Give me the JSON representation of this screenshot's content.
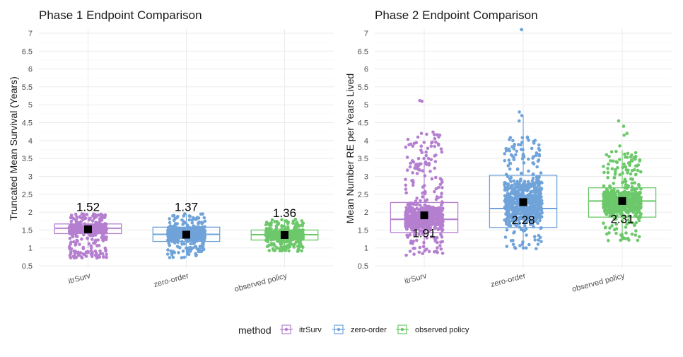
{
  "legend": {
    "title": "method",
    "items": [
      {
        "label": "itrSurv",
        "color": "#B57FD0"
      },
      {
        "label": "zero-order",
        "color": "#6FA3D9"
      },
      {
        "label": "observed policy",
        "color": "#6CC86A"
      }
    ]
  },
  "chart_data": [
    {
      "type": "box",
      "title": "Phase 1 Endpoint Comparison",
      "ylabel": "Truncated Mean Survival (Years)",
      "xlabel": "",
      "ylim": [
        0.5,
        7
      ],
      "yticks": [
        "0.5",
        "1",
        "1.5",
        "2",
        "2.5",
        "3",
        "3.5",
        "4",
        "4.5",
        "5",
        "5.5",
        "6",
        "6.5",
        "7"
      ],
      "categories": [
        "itrSurv",
        "zero-order",
        "observed policy"
      ],
      "colors": [
        "#B57FD0",
        "#6FA3D9",
        "#6CC86A"
      ],
      "boxes": [
        {
          "q1": 1.4,
          "median": 1.55,
          "q3": 1.67,
          "whisker_low": 1.0,
          "whisker_high": 1.97,
          "point_min": 0.72,
          "point_max": 1.97,
          "mean": 1.52,
          "mean_label": "1.52"
        },
        {
          "q1": 1.18,
          "median": 1.38,
          "q3": 1.58,
          "whisker_low": 0.72,
          "whisker_high": 1.97,
          "point_min": 0.7,
          "point_max": 1.97,
          "mean": 1.37,
          "mean_label": "1.37"
        },
        {
          "q1": 1.22,
          "median": 1.37,
          "q3": 1.5,
          "whisker_low": 0.95,
          "whisker_high": 1.78,
          "point_min": 0.9,
          "point_max": 1.8,
          "mean": 1.36,
          "mean_label": "1.36"
        }
      ]
    },
    {
      "type": "box",
      "title": "Phase 2 Endpoint Comparison",
      "ylabel": "Mean Number RE per Years Lived",
      "xlabel": "",
      "ylim": [
        0.5,
        7
      ],
      "yticks": [
        "0.5",
        "1",
        "1.5",
        "2",
        "2.5",
        "3",
        "3.5",
        "4",
        "4.5",
        "5",
        "5.5",
        "6",
        "6.5",
        "7"
      ],
      "categories": [
        "itrSurv",
        "zero-order",
        "observed policy"
      ],
      "colors": [
        "#B57FD0",
        "#6FA3D9",
        "#6CC86A"
      ],
      "boxes": [
        {
          "q1": 1.43,
          "median": 1.8,
          "q3": 2.27,
          "whisker_low": 0.95,
          "whisker_high": 3.4,
          "point_min": 0.75,
          "point_max": 4.25,
          "outliers": [
            5.12,
            5.1,
            4.2,
            3.95
          ],
          "mean": 1.91,
          "mean_label": "1.91"
        },
        {
          "q1": 1.57,
          "median": 2.1,
          "q3": 3.03,
          "whisker_low": 0.95,
          "whisker_high": 4.7,
          "point_min": 0.92,
          "point_max": 4.1,
          "outliers": [
            7.1,
            7.1,
            4.8,
            4.7,
            4.55
          ],
          "mean": 2.28,
          "mean_label": "2.28"
        },
        {
          "q1": 1.86,
          "median": 2.31,
          "q3": 2.68,
          "whisker_low": 1.23,
          "whisker_high": 3.73,
          "point_min": 1.2,
          "point_max": 3.7,
          "outliers": [
            4.55,
            4.4,
            4.2,
            4.15,
            3.85
          ],
          "mean": 2.31,
          "mean_label": "2.31"
        }
      ]
    }
  ]
}
